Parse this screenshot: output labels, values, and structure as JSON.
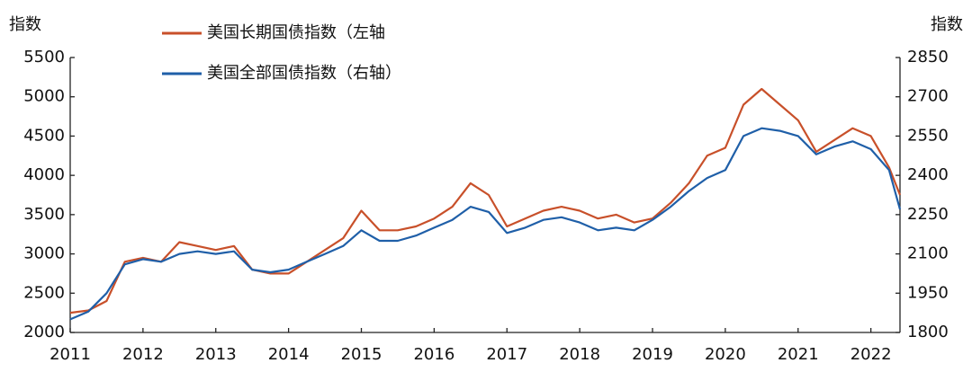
{
  "chart_data": {
    "type": "line",
    "y_label": "指数",
    "y2_label": "指数",
    "x": [
      2011,
      2011.25,
      2011.5,
      2011.75,
      2012,
      2012.25,
      2012.5,
      2012.75,
      2013,
      2013.25,
      2013.5,
      2013.75,
      2014,
      2014.25,
      2014.5,
      2014.75,
      2015,
      2015.25,
      2015.5,
      2015.75,
      2016,
      2016.25,
      2016.5,
      2016.75,
      2017,
      2017.25,
      2017.5,
      2017.75,
      2018,
      2018.25,
      2018.5,
      2018.75,
      2019,
      2019.25,
      2019.5,
      2019.75,
      2020,
      2020.25,
      2020.5,
      2020.75,
      2021,
      2021.25,
      2021.5,
      2021.75,
      2022,
      2022.25,
      2022.4
    ],
    "series": [
      {
        "name": "美国长期国债指数（左轴",
        "color": "#c8502a",
        "axis": "y",
        "values": [
          2250,
          2280,
          2400,
          2900,
          2950,
          2900,
          3150,
          3100,
          3050,
          3100,
          2800,
          2750,
          2750,
          2900,
          3050,
          3200,
          3550,
          3300,
          3300,
          3350,
          3450,
          3600,
          3900,
          3750,
          3350,
          3450,
          3550,
          3600,
          3550,
          3450,
          3500,
          3400,
          3450,
          3650,
          3900,
          4250,
          4350,
          4900,
          5100,
          4900,
          4700,
          4300,
          4450,
          4600,
          4500,
          4100,
          3750
        ]
      },
      {
        "name": "美国全部国债指数（右轴）",
        "color": "#1f5fa8",
        "axis": "y2",
        "values": [
          1850,
          1880,
          1950,
          2060,
          2080,
          2070,
          2100,
          2110,
          2100,
          2110,
          2040,
          2030,
          2040,
          2070,
          2100,
          2130,
          2190,
          2150,
          2150,
          2170,
          2200,
          2230,
          2280,
          2260,
          2180,
          2200,
          2230,
          2240,
          2220,
          2190,
          2200,
          2190,
          2230,
          2280,
          2340,
          2390,
          2420,
          2550,
          2580,
          2570,
          2550,
          2480,
          2510,
          2530,
          2500,
          2420,
          2270
        ]
      }
    ],
    "xlim": [
      2011,
      2022.4
    ],
    "xticks": [
      2011,
      2012,
      2013,
      2014,
      2015,
      2016,
      2017,
      2018,
      2019,
      2020,
      2021,
      2022
    ],
    "ylim": [
      2000,
      5500
    ],
    "yticks": [
      2000,
      2500,
      3000,
      3500,
      4000,
      4500,
      5000,
      5500
    ],
    "y2lim": [
      1800,
      2850
    ],
    "y2ticks": [
      1800,
      1950,
      2100,
      2250,
      2400,
      2550,
      2700,
      2850
    ]
  }
}
